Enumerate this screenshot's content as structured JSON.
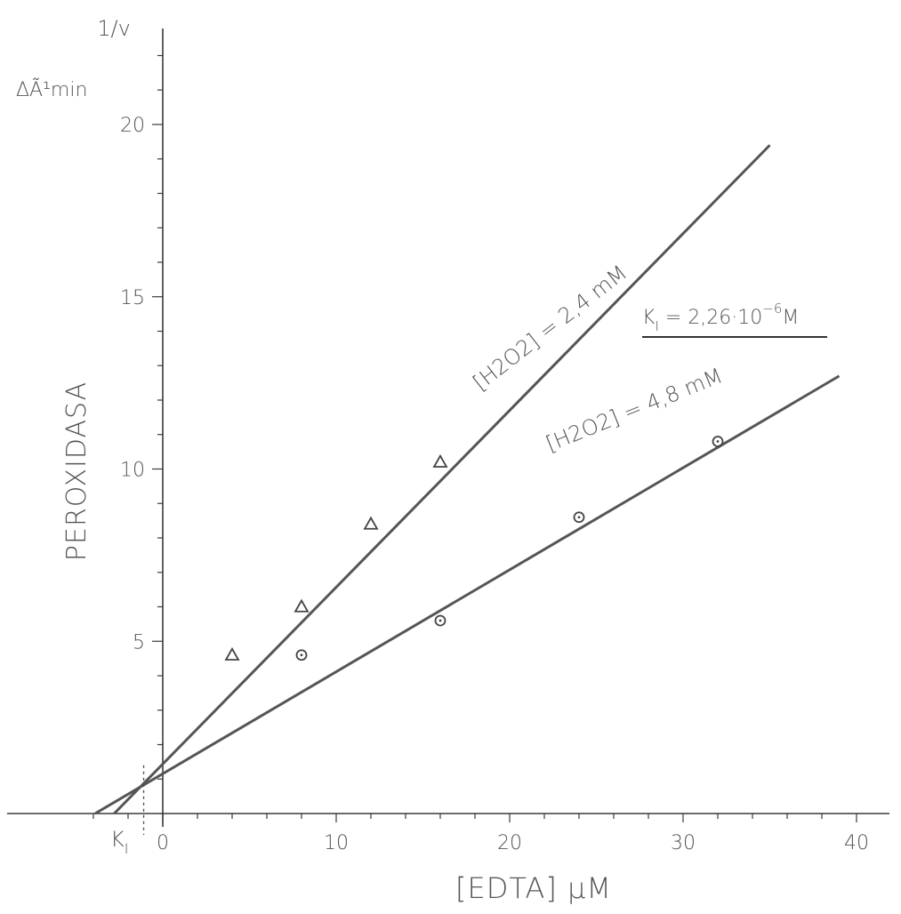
{
  "chart_data": {
    "type": "line",
    "title": "",
    "x_axis": {
      "label": "[EDTA] µM",
      "range": [
        -4.5,
        42
      ],
      "ticks": [
        0,
        10,
        20,
        30,
        40
      ],
      "tick_labels": [
        "0",
        "10",
        "20",
        "30",
        "40"
      ],
      "minor_tick_step": 2
    },
    "y_axis": {
      "label_top": "1/v",
      "label_units": "ΔÃ¹min",
      "side_label": "PEROXIDASA",
      "range": [
        -0.6,
        22.5
      ],
      "ticks": [
        5,
        10,
        15,
        20
      ],
      "tick_labels": [
        "5",
        "10",
        "15",
        "20"
      ],
      "minor_tick_step": 1
    },
    "series": [
      {
        "name": "[H2O2] = 2,4 mM",
        "marker": "triangle",
        "points": [
          [
            4,
            4.6
          ],
          [
            8,
            6.0
          ],
          [
            12,
            8.4
          ],
          [
            16,
            10.2
          ]
        ],
        "fit_line": [
          [
            -2.8,
            0
          ],
          [
            35,
            19.4
          ]
        ]
      },
      {
        "name": "[H2O2] = 4,8 mM",
        "marker": "circle-dot",
        "points": [
          [
            8,
            4.6
          ],
          [
            16,
            5.6
          ],
          [
            24,
            8.6
          ],
          [
            32,
            10.8
          ]
        ],
        "fit_line": [
          [
            -3.9,
            0
          ],
          [
            39,
            12.7
          ]
        ]
      }
    ],
    "intersection": {
      "x": -1.1,
      "y": 1.4
    },
    "annotations": {
      "ki_axis_label": "K",
      "ki_subscript": "I",
      "ki_value_prefix": "K",
      "ki_value_sub": "I",
      "ki_value_main": " = 2,26·10",
      "ki_value_exp": "−6",
      "ki_value_unit": "M"
    },
    "grid": false,
    "legend": "none"
  }
}
